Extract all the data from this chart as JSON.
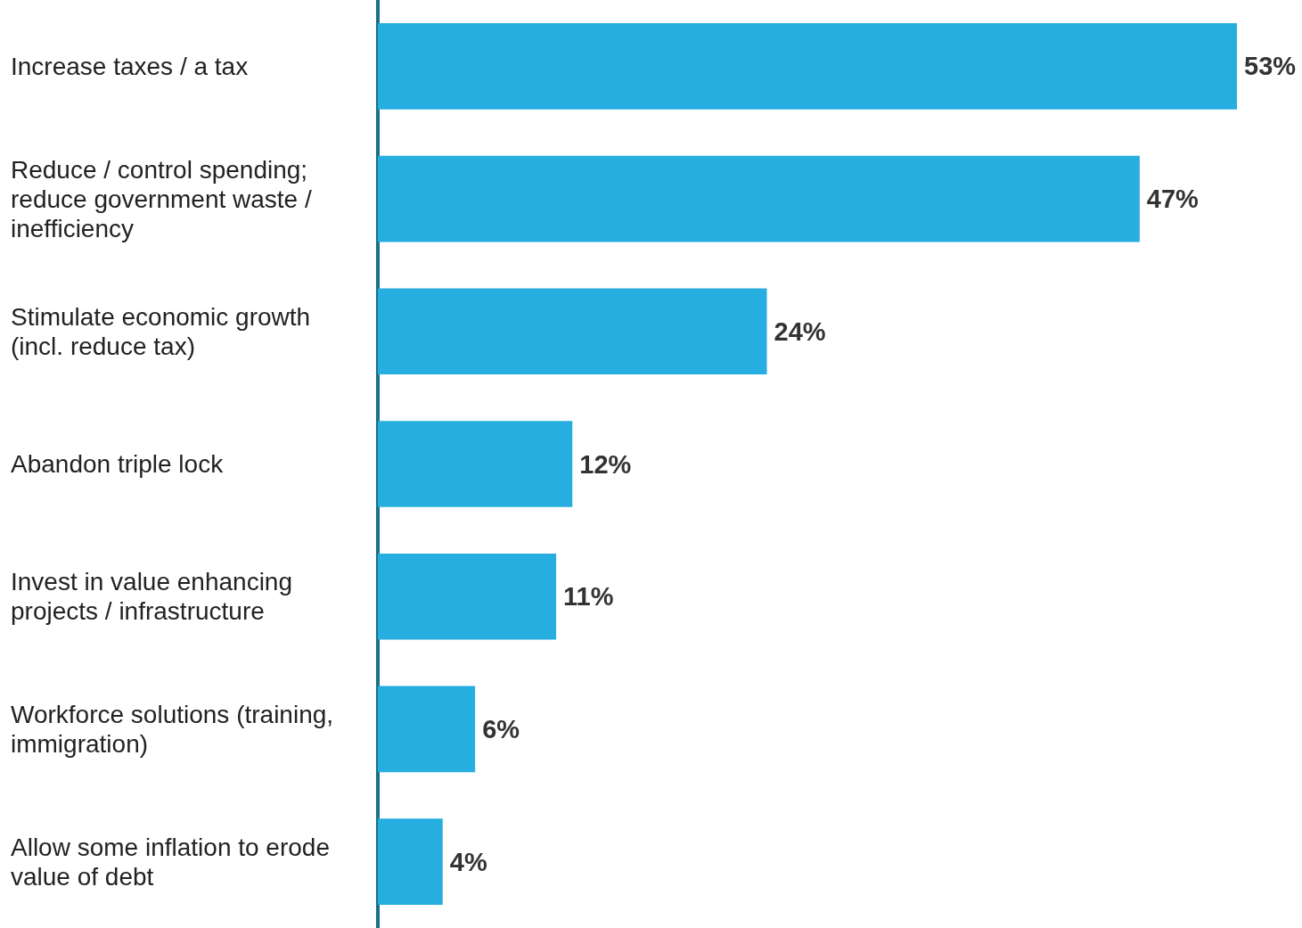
{
  "chart_data": {
    "type": "bar",
    "orientation": "horizontal",
    "categories": [
      "Increase taxes / a tax",
      "Reduce / control spending; reduce government waste / inefficiency",
      "Stimulate economic growth (incl. reduce tax)",
      "Abandon triple lock",
      "Invest in value enhancing projects / infrastructure",
      "Workforce solutions (training, immigration)",
      "Allow some inflation to erode value of debt"
    ],
    "values": [
      53,
      47,
      24,
      12,
      11,
      6,
      4
    ],
    "value_labels": [
      "53%",
      "47%",
      "24%",
      "12%",
      "11%",
      "6%",
      "4%"
    ],
    "color": "#27aee0"
  }
}
